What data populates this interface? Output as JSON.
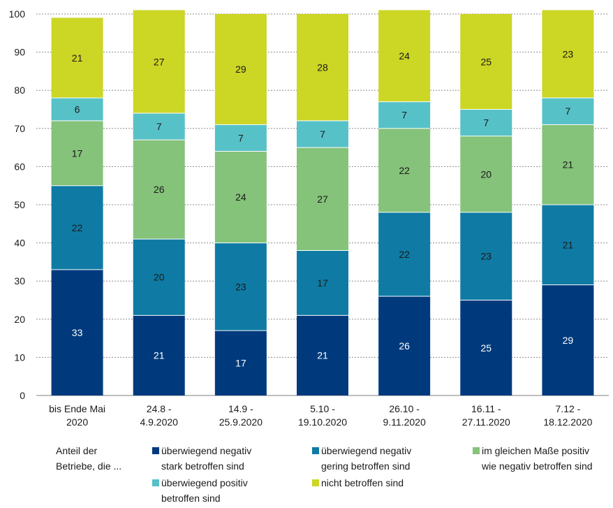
{
  "chart_data": {
    "type": "bar",
    "stacked": true,
    "categories": [
      [
        "bis Ende Mai",
        "2020"
      ],
      [
        "24.8 -",
        "4.9.2020"
      ],
      [
        "14.9 -",
        "25.9.2020"
      ],
      [
        "5.10 -",
        "19.10.2020"
      ],
      [
        "26.10 -",
        "9.11.2020"
      ],
      [
        "16.11 -",
        "27.11.2020"
      ],
      [
        "7.12 -",
        "18.12.2020"
      ]
    ],
    "series": [
      {
        "name": "überwiegend negativ stark betroffen sind",
        "color": "#003a7d",
        "label_color": "#ffffff",
        "values": [
          33,
          21,
          17,
          21,
          26,
          25,
          29
        ]
      },
      {
        "name": "überwiegend negativ gering betroffen sind",
        "color": "#0f7ba4",
        "label_color": "#1a1a1a",
        "values": [
          22,
          20,
          23,
          17,
          22,
          23,
          21
        ]
      },
      {
        "name": "im gleichen Maße positiv wie negativ betroffen sind",
        "color": "#85c27a",
        "label_color": "#1a1a1a",
        "values": [
          17,
          26,
          24,
          27,
          22,
          20,
          21
        ]
      },
      {
        "name": "überwiegend positiv betroffen sind",
        "color": "#57c1c8",
        "label_color": "#1a1a1a",
        "values": [
          6,
          7,
          7,
          7,
          7,
          7,
          7
        ]
      },
      {
        "name": "nicht betroffen sind",
        "color": "#ccd624",
        "label_color": "#1a1a1a",
        "values": [
          21,
          27,
          29,
          28,
          24,
          25,
          23
        ]
      }
    ],
    "ylim": [
      0,
      100
    ],
    "yticks": [
      "0",
      "10",
      "20",
      "30",
      "40",
      "50",
      "60",
      "70",
      "80",
      "90",
      "100"
    ],
    "grid": true,
    "xlabel": "",
    "ylabel": "",
    "legend_position": "bottom"
  },
  "legend": {
    "title_lines": [
      "Anteil der",
      "Betriebe, die ..."
    ],
    "items": [
      {
        "lines": [
          "überwiegend negativ",
          "stark betroffen sind"
        ],
        "color": "#003a7d"
      },
      {
        "lines": [
          "überwiegend negativ",
          "gering betroffen sind"
        ],
        "color": "#0f7ba4"
      },
      {
        "lines": [
          "im gleichen Maße positiv",
          "wie negativ betroffen sind"
        ],
        "color": "#85c27a"
      },
      {
        "lines": [
          "überwiegend positiv",
          "betroffen sind"
        ],
        "color": "#57c1c8"
      },
      {
        "lines": [
          "nicht betroffen sind"
        ],
        "color": "#ccd624"
      }
    ]
  }
}
